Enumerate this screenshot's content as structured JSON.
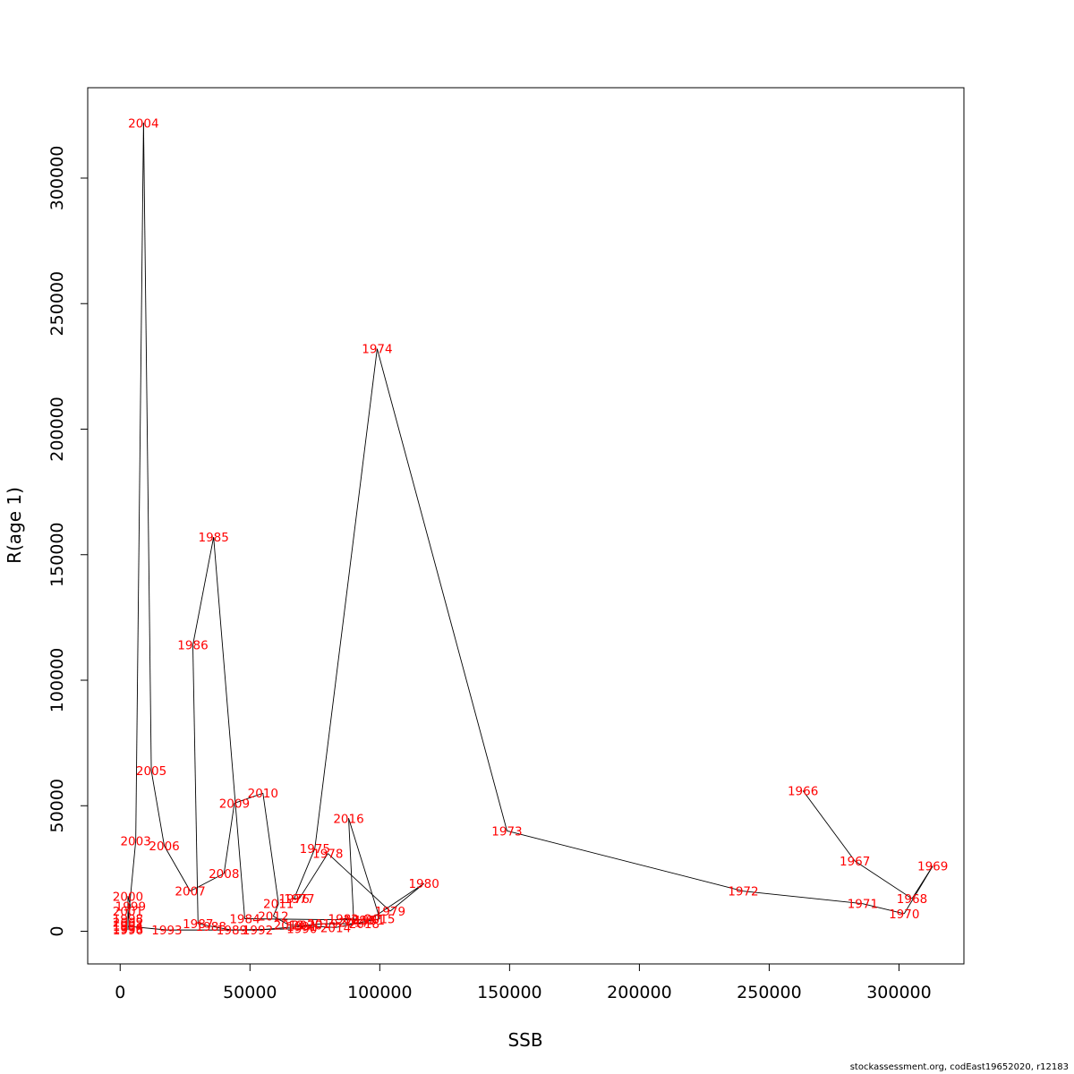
{
  "credit": "stockassessment.org, codEast19652020, r12183",
  "chart_data": {
    "type": "line",
    "title": "",
    "xlabel": "SSB",
    "ylabel": "R(age 1)",
    "xlim": [
      -12500,
      325000
    ],
    "ylim": [
      -13000,
      336000
    ],
    "x_ticks": [
      0,
      50000,
      100000,
      150000,
      200000,
      250000,
      300000
    ],
    "x_tick_labels": [
      "0",
      "50000",
      "100000",
      "150000",
      "200000",
      "250000",
      "300000"
    ],
    "y_ticks": [
      0,
      50000,
      100000,
      150000,
      200000,
      250000,
      300000
    ],
    "y_tick_labels": [
      "0",
      "50000",
      "100000",
      "150000",
      "200000",
      "250000",
      "300000"
    ],
    "line_color": "#000000",
    "label_color": "#ff0000",
    "points": [
      {
        "year": "1966",
        "x": 263000,
        "y": 56000
      },
      {
        "year": "1967",
        "x": 283000,
        "y": 28000
      },
      {
        "year": "1968",
        "x": 305000,
        "y": 13000
      },
      {
        "year": "1969",
        "x": 313000,
        "y": 26000
      },
      {
        "year": "1970",
        "x": 302000,
        "y": 7000
      },
      {
        "year": "1971",
        "x": 286000,
        "y": 11000
      },
      {
        "year": "1972",
        "x": 240000,
        "y": 16000
      },
      {
        "year": "1973",
        "x": 149000,
        "y": 40000
      },
      {
        "year": "1974",
        "x": 99000,
        "y": 232000
      },
      {
        "year": "1975",
        "x": 75000,
        "y": 33000
      },
      {
        "year": "1976",
        "x": 67000,
        "y": 13000
      },
      {
        "year": "1977",
        "x": 69000,
        "y": 13000
      },
      {
        "year": "1978",
        "x": 80000,
        "y": 31000
      },
      {
        "year": "1979",
        "x": 104000,
        "y": 8000
      },
      {
        "year": "1980",
        "x": 117000,
        "y": 19000
      },
      {
        "year": "1981",
        "x": 96000,
        "y": 4500
      },
      {
        "year": "1982",
        "x": 86000,
        "y": 5000
      },
      {
        "year": "1983",
        "x": 92000,
        "y": 4500
      },
      {
        "year": "1984",
        "x": 48000,
        "y": 5000
      },
      {
        "year": "1985",
        "x": 36000,
        "y": 157000
      },
      {
        "year": "1986",
        "x": 28000,
        "y": 114000
      },
      {
        "year": "1987",
        "x": 30000,
        "y": 3000
      },
      {
        "year": "1988",
        "x": 35000,
        "y": 2000
      },
      {
        "year": "1989",
        "x": 43000,
        "y": 500
      },
      {
        "year": "1990",
        "x": 70000,
        "y": 1000
      },
      {
        "year": "1991",
        "x": 70000,
        "y": 2000
      },
      {
        "year": "1992",
        "x": 53000,
        "y": 500
      },
      {
        "year": "1993",
        "x": 18000,
        "y": 500
      },
      {
        "year": "1994",
        "x": 3000,
        "y": 2000
      },
      {
        "year": "1995",
        "x": 3000,
        "y": 1000
      },
      {
        "year": "1996",
        "x": 3000,
        "y": 500
      },
      {
        "year": "1997",
        "x": 3000,
        "y": 2500
      },
      {
        "year": "1998",
        "x": 3000,
        "y": 5000
      },
      {
        "year": "1999",
        "x": 4000,
        "y": 10000
      },
      {
        "year": "2000",
        "x": 3000,
        "y": 14000
      },
      {
        "year": "2001",
        "x": 3000,
        "y": 8000
      },
      {
        "year": "2002",
        "x": 3000,
        "y": 3500
      },
      {
        "year": "2003",
        "x": 6000,
        "y": 36000
      },
      {
        "year": "2004",
        "x": 9000,
        "y": 322000
      },
      {
        "year": "2005",
        "x": 12000,
        "y": 64000
      },
      {
        "year": "2006",
        "x": 17000,
        "y": 34000
      },
      {
        "year": "2007",
        "x": 27000,
        "y": 16000
      },
      {
        "year": "2008",
        "x": 40000,
        "y": 23000
      },
      {
        "year": "2009",
        "x": 44000,
        "y": 51000
      },
      {
        "year": "2010",
        "x": 55000,
        "y": 55000
      },
      {
        "year": "2011",
        "x": 61000,
        "y": 11000
      },
      {
        "year": "2012",
        "x": 59000,
        "y": 6000
      },
      {
        "year": "2013",
        "x": 65000,
        "y": 2500
      },
      {
        "year": "2014",
        "x": 83000,
        "y": 1500
      },
      {
        "year": "2015",
        "x": 100000,
        "y": 5000
      },
      {
        "year": "2016",
        "x": 88000,
        "y": 45000
      },
      {
        "year": "2017",
        "x": 90000,
        "y": 3500
      },
      {
        "year": "2018",
        "x": 94000,
        "y": 3000
      },
      {
        "year": "2019",
        "x": 78000,
        "y": 3000
      },
      {
        "year": "2020",
        "x": 72000,
        "y": 2500
      }
    ]
  }
}
